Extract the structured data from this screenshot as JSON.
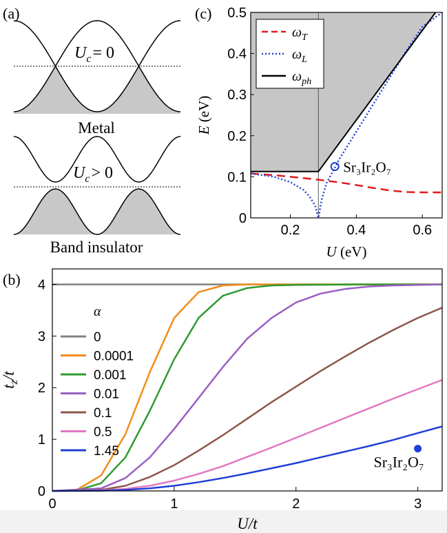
{
  "panels": {
    "a": {
      "label": "(a)",
      "top": {
        "formula_sym": "U",
        "formula_sub": "c",
        "formula_rel": "= 0",
        "caption": "Metal"
      },
      "bottom": {
        "formula_sym": "U",
        "formula_sub": "c",
        "formula_rel": "> 0",
        "caption": "Band insulator"
      }
    },
    "b": {
      "label": "(b)",
      "legend_title": "α",
      "annotation": "Sr₃Ir₂O₇"
    },
    "c": {
      "label": "(c)",
      "annotation": "Sr₃Ir₂O₇"
    }
  },
  "chart_data": [
    {
      "id": "c",
      "type": "line",
      "xlabel": "U (eV)",
      "ylabel": "E (eV)",
      "xlim": [
        0.08,
        0.66
      ],
      "ylim": [
        0,
        0.5
      ],
      "xticks": [
        "0.2",
        "0.4",
        "0.6"
      ],
      "yticks": [
        "0",
        "0.1",
        "0.2",
        "0.3",
        "0.4",
        "0.5"
      ],
      "legend_position": "top-left",
      "critical_U": 0.285,
      "series": [
        {
          "name": "ωT",
          "style": "dashed",
          "color": "#e41a1c",
          "x": [
            0.08,
            0.15,
            0.2,
            0.25,
            0.285,
            0.35,
            0.4,
            0.45,
            0.5,
            0.55,
            0.6,
            0.66
          ],
          "y": [
            0.108,
            0.104,
            0.1,
            0.096,
            0.093,
            0.086,
            0.08,
            0.073,
            0.067,
            0.063,
            0.062,
            0.062
          ]
        },
        {
          "name": "ωL",
          "style": "dotted",
          "color": "#1f3fd6",
          "x": [
            0.08,
            0.15,
            0.2,
            0.24,
            0.26,
            0.275,
            0.285,
            0.295,
            0.31,
            0.35,
            0.4,
            0.45,
            0.5,
            0.55,
            0.6,
            0.66
          ],
          "y": [
            0.108,
            0.1,
            0.087,
            0.068,
            0.05,
            0.03,
            0.0,
            0.045,
            0.085,
            0.145,
            0.21,
            0.275,
            0.34,
            0.405,
            0.465,
            0.5
          ]
        },
        {
          "name": "ωph",
          "style": "solid",
          "color": "#000000",
          "x": [
            0.08,
            0.285,
            0.285,
            0.64
          ],
          "y": [
            0.113,
            0.113,
            0.113,
            0.5
          ]
        }
      ],
      "shaded_region": "above ωph (gray)",
      "point": {
        "x": 0.335,
        "y": 0.125,
        "label": "Sr₃Ir₂O₇"
      }
    },
    {
      "id": "b",
      "type": "line",
      "xlabel": "U/t",
      "ylabel": "tz/t",
      "xlim": [
        0,
        3.2
      ],
      "ylim": [
        0,
        4.3
      ],
      "xticks": [
        "0",
        "1",
        "2",
        "3"
      ],
      "yticks": [
        "0",
        "1",
        "2",
        "3",
        "4"
      ],
      "legend_title": "α",
      "legend_position": "top-left",
      "series": [
        {
          "name": "0",
          "color": "#808080",
          "x": [
            0,
            0.5,
            1,
            1.5,
            2,
            2.5,
            3,
            3.2
          ],
          "y": [
            4,
            4,
            4,
            4,
            4,
            4,
            4,
            4
          ]
        },
        {
          "name": "0.0001",
          "color": "#f28c1a",
          "x": [
            0,
            0.2,
            0.4,
            0.6,
            0.8,
            1.0,
            1.2,
            1.4,
            1.6,
            2.0,
            3.2
          ],
          "y": [
            0,
            0.02,
            0.3,
            1.1,
            2.3,
            3.35,
            3.85,
            3.98,
            4.0,
            4.0,
            4.0
          ]
        },
        {
          "name": "0.001",
          "color": "#2e9a2e",
          "x": [
            0,
            0.2,
            0.4,
            0.6,
            0.8,
            1.0,
            1.2,
            1.4,
            1.6,
            1.8,
            2.0,
            2.5,
            3.2
          ],
          "y": [
            0,
            0.01,
            0.15,
            0.65,
            1.55,
            2.55,
            3.35,
            3.78,
            3.93,
            3.98,
            3.99,
            4.0,
            4.0
          ]
        },
        {
          "name": "0.01",
          "color": "#9a5fc4",
          "x": [
            0,
            0.4,
            0.6,
            0.8,
            1.0,
            1.2,
            1.4,
            1.6,
            1.8,
            2.0,
            2.2,
            2.4,
            2.6,
            2.8,
            3.0,
            3.2
          ],
          "y": [
            0,
            0.05,
            0.25,
            0.65,
            1.2,
            1.8,
            2.4,
            2.95,
            3.35,
            3.65,
            3.82,
            3.91,
            3.96,
            3.98,
            3.99,
            4.0
          ]
        },
        {
          "name": "0.1",
          "color": "#8c564b",
          "x": [
            0,
            0.4,
            0.6,
            0.8,
            1.0,
            1.2,
            1.4,
            1.6,
            1.8,
            2.0,
            2.2,
            2.4,
            2.6,
            2.8,
            3.0,
            3.2
          ],
          "y": [
            0,
            0.02,
            0.1,
            0.27,
            0.5,
            0.78,
            1.08,
            1.4,
            1.72,
            2.02,
            2.32,
            2.6,
            2.87,
            3.12,
            3.35,
            3.55
          ]
        },
        {
          "name": "0.5",
          "color": "#e377c2",
          "x": [
            0,
            0.4,
            0.6,
            0.8,
            1.0,
            1.2,
            1.4,
            1.6,
            1.8,
            2.0,
            2.2,
            2.4,
            2.6,
            2.8,
            3.0,
            3.2
          ],
          "y": [
            0,
            0.01,
            0.04,
            0.1,
            0.2,
            0.33,
            0.48,
            0.66,
            0.84,
            1.03,
            1.22,
            1.41,
            1.6,
            1.79,
            1.97,
            2.15
          ]
        },
        {
          "name": "1.45",
          "color": "#1f3fd6",
          "x": [
            0,
            0.4,
            0.6,
            0.8,
            1.0,
            1.2,
            1.4,
            1.6,
            1.8,
            2.0,
            2.2,
            2.4,
            2.6,
            2.8,
            3.0,
            3.2
          ],
          "y": [
            0,
            0.005,
            0.02,
            0.05,
            0.1,
            0.17,
            0.25,
            0.34,
            0.44,
            0.54,
            0.65,
            0.76,
            0.87,
            0.99,
            1.12,
            1.25
          ]
        }
      ],
      "point": {
        "x": 3.0,
        "y": 0.82,
        "label": "Sr₃Ir₂O₇",
        "color": "#1f3fd6"
      }
    }
  ]
}
